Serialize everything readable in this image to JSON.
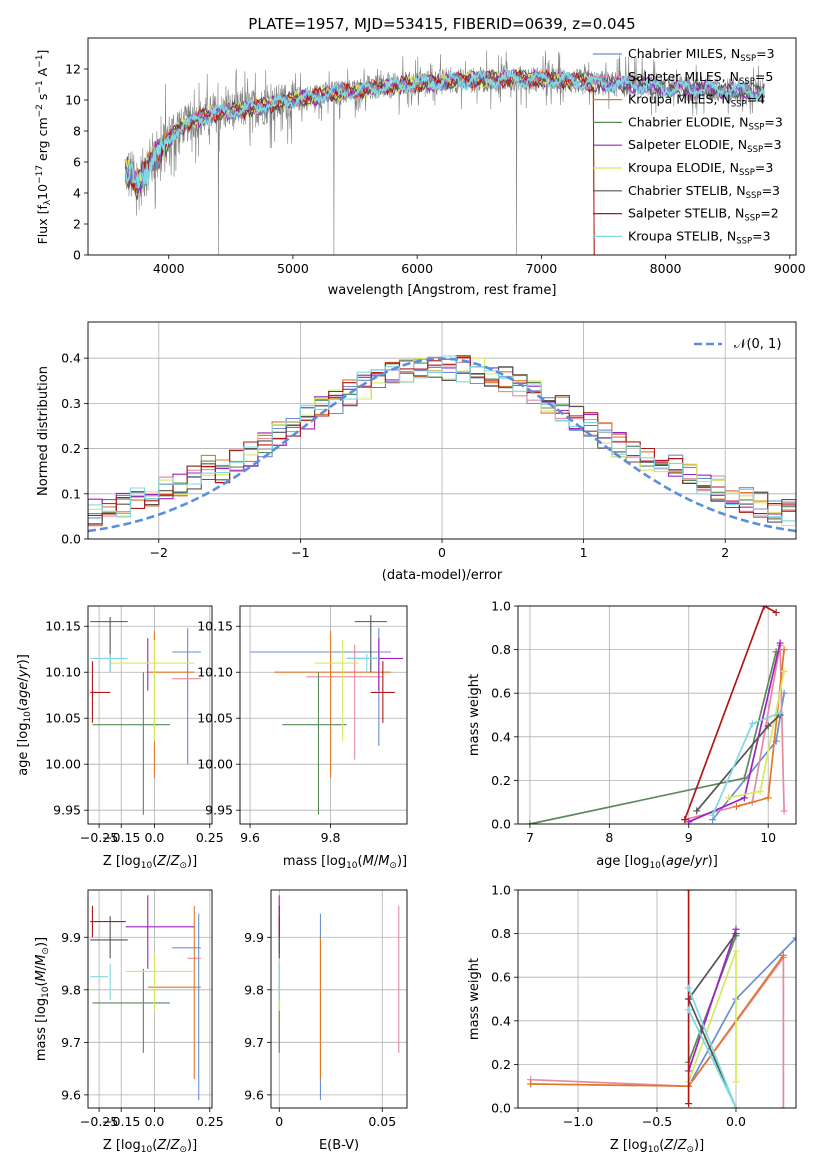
{
  "colors": {
    "c_miles": "#6a8fd6",
    "s_miles": "#e68aa0",
    "k_miles": "#e0782a",
    "c_elodie": "#5a8a5a",
    "s_elodie": "#a020c0",
    "k_elodie": "#d8e860",
    "c_stelib": "#555555",
    "s_stelib": "#b01818",
    "k_stelib": "#80d8e0",
    "observed": "#808080",
    "normal": "#5b8fdc"
  },
  "chart_data": [
    {
      "id": "spectrum",
      "type": "line",
      "title": "PLATE=1957, MJD=53415, FIBERID=0639, z=0.045",
      "xlabel": "wavelength [Angstrom, rest frame]",
      "ylabel": "Flux [f",
      "xlim": [
        3350,
        9050
      ],
      "ylim": [
        0,
        14
      ],
      "xticks": [
        4000,
        5000,
        6000,
        7000,
        8000,
        9000
      ],
      "yticks": [
        0,
        2,
        4,
        6,
        8,
        10,
        12
      ],
      "grid": false,
      "legend_position": "right",
      "legend": [
        {
          "label": "Chabrier MILES, N",
          "n": "3",
          "color_key": "c_miles"
        },
        {
          "label": "Salpeter MILES, N",
          "n": "5",
          "color_key": "s_miles"
        },
        {
          "label": "Kroupa MILES, N",
          "n": "4",
          "color_key": "k_miles"
        },
        {
          "label": "Chabrier ELODIE, N",
          "n": "3",
          "color_key": "c_elodie"
        },
        {
          "label": "Salpeter ELODIE, N",
          "n": "3",
          "color_key": "s_elodie"
        },
        {
          "label": "Kroupa ELODIE, N",
          "n": "3",
          "color_key": "k_elodie"
        },
        {
          "label": "Chabrier STELIB, N",
          "n": "3",
          "color_key": "c_stelib"
        },
        {
          "label": "Salpeter STELIB, N",
          "n": "2",
          "color_key": "s_stelib"
        },
        {
          "label": "Kroupa STELIB, N",
          "n": "3",
          "color_key": "k_stelib"
        }
      ],
      "continuum": [
        [
          3650,
          5.5
        ],
        [
          3750,
          4.5
        ],
        [
          3850,
          6.0
        ],
        [
          3950,
          6.8
        ],
        [
          4050,
          8.0
        ],
        [
          4150,
          8.5
        ],
        [
          4300,
          9.0
        ],
        [
          4500,
          9.3
        ],
        [
          4700,
          9.5
        ],
        [
          5000,
          10.0
        ],
        [
          5300,
          10.4
        ],
        [
          5600,
          10.7
        ],
        [
          5900,
          11.0
        ],
        [
          6200,
          11.2
        ],
        [
          6500,
          11.3
        ],
        [
          6800,
          11.4
        ],
        [
          7100,
          11.3
        ],
        [
          7400,
          11.1
        ],
        [
          7700,
          11.0
        ],
        [
          8000,
          10.8
        ],
        [
          8300,
          10.7
        ],
        [
          8600,
          10.6
        ],
        [
          8800,
          10.5
        ]
      ]
    },
    {
      "id": "residuals",
      "type": "histogram",
      "xlabel": "(data-model)/error",
      "ylabel": "Normed distribution",
      "xlim": [
        -2.5,
        2.5
      ],
      "ylim": [
        0,
        0.48
      ],
      "xticks": [
        -2,
        -1,
        0,
        1,
        2
      ],
      "yticks": [
        0.0,
        0.1,
        0.2,
        0.3,
        0.4
      ],
      "grid": true,
      "bin_width": 0.1,
      "legend_position": "top-right",
      "normal_label": "𝒩(0, 1)",
      "normal": {
        "mean": 0,
        "sigma": 1
      }
    },
    {
      "id": "age_vs_Z",
      "type": "errorbar",
      "xlabel": "Z [log",
      "ylabel": "age  [log",
      "xlim": [
        -0.3,
        0.26
      ],
      "ylim": [
        9.935,
        10.172
      ],
      "xticks": [
        -0.25,
        -0.15,
        0.0,
        0.25
      ],
      "xtick_labels": [
        "−0.25",
        "−0.15",
        "0.0",
        "0.25"
      ],
      "yticks": [
        9.95,
        10.0,
        10.05,
        10.1,
        10.15
      ],
      "grid": true,
      "points": [
        {
          "c": "c_miles",
          "x": 0.15,
          "xl": 0.08,
          "xh": 0.21,
          "y": 10.122,
          "yl": 10.0,
          "yh": 10.148
        },
        {
          "c": "s_miles",
          "x": 0.15,
          "xl": 0.08,
          "xh": 0.21,
          "y": 10.093,
          "yl": 10.093,
          "yh": 10.093
        },
        {
          "c": "k_miles",
          "x": 0.0,
          "xl": -0.03,
          "xh": 0.18,
          "y": 10.1,
          "yl": 9.985,
          "yh": 10.145
        },
        {
          "c": "c_elodie",
          "x": -0.05,
          "xl": -0.28,
          "xh": 0.07,
          "y": 10.043,
          "yl": 9.945,
          "yh": 10.1
        },
        {
          "c": "s_elodie",
          "x": -0.03,
          "xl": -0.03,
          "xh": -0.03,
          "y": 10.115,
          "yl": 10.08,
          "yh": 10.137
        },
        {
          "c": "k_elodie",
          "x": 0.0,
          "xl": -0.2,
          "xh": 0.18,
          "y": 10.11,
          "yl": 10.025,
          "yh": 10.135
        },
        {
          "c": "c_stelib",
          "x": -0.2,
          "xl": -0.29,
          "xh": -0.12,
          "y": 10.155,
          "yl": 10.1,
          "yh": 10.16
        },
        {
          "c": "s_stelib",
          "x": -0.28,
          "xl": -0.29,
          "xh": -0.2,
          "y": 10.078,
          "yl": 10.045,
          "yh": 10.112
        },
        {
          "c": "k_stelib",
          "x": -0.2,
          "xl": -0.29,
          "xh": -0.12,
          "y": 10.115,
          "yl": 10.1,
          "yh": 10.12
        }
      ]
    },
    {
      "id": "age_vs_mass",
      "type": "errorbar",
      "xlabel": "mass [log",
      "ylabel": "",
      "xlim": [
        9.575,
        9.99
      ],
      "ylim": [
        9.935,
        10.172
      ],
      "xticks": [
        9.6,
        9.8
      ],
      "yticks": [
        9.95,
        10.0,
        10.05,
        10.1,
        10.15
      ],
      "grid": true,
      "points": [
        {
          "c": "c_miles",
          "x": 9.92,
          "xl": 9.6,
          "xh": 9.95,
          "y": 10.122,
          "yl": 10.02,
          "yh": 10.148
        },
        {
          "c": "s_miles",
          "x": 9.86,
          "xl": 9.74,
          "xh": 9.93,
          "y": 10.095,
          "yl": 10.005,
          "yh": 10.13
        },
        {
          "c": "k_miles",
          "x": 9.8,
          "xl": 9.66,
          "xh": 9.95,
          "y": 10.1,
          "yl": 9.985,
          "yh": 10.145
        },
        {
          "c": "c_elodie",
          "x": 9.77,
          "xl": 9.68,
          "xh": 9.84,
          "y": 10.043,
          "yl": 9.945,
          "yh": 10.1
        },
        {
          "c": "s_elodie",
          "x": 9.92,
          "xl": 9.84,
          "xh": 9.98,
          "y": 10.115,
          "yl": 10.08,
          "yh": 10.137
        },
        {
          "c": "k_elodie",
          "x": 9.83,
          "xl": 9.76,
          "xh": 9.87,
          "y": 10.11,
          "yl": 10.025,
          "yh": 10.135
        },
        {
          "c": "c_stelib",
          "x": 9.9,
          "xl": 9.86,
          "xh": 9.94,
          "y": 10.155,
          "yl": 10.1,
          "yh": 10.162
        },
        {
          "c": "s_stelib",
          "x": 9.93,
          "xl": 9.9,
          "xh": 9.96,
          "y": 10.078,
          "yl": 10.045,
          "yh": 10.112
        },
        {
          "c": "k_stelib",
          "x": 9.89,
          "xl": 9.84,
          "xh": 9.92,
          "y": 10.115,
          "yl": 10.1,
          "yh": 10.12
        }
      ]
    },
    {
      "id": "weight_vs_age",
      "type": "line",
      "xlabel": "age  [log",
      "ylabel": "mass weight",
      "xlim": [
        6.85,
        10.35
      ],
      "ylim": [
        0,
        1
      ],
      "xticks": [
        7,
        8,
        9,
        10
      ],
      "yticks": [
        0.0,
        0.2,
        0.4,
        0.6,
        0.8,
        1.0
      ],
      "grid": true,
      "series": [
        {
          "c": "c_miles",
          "x": [
            9.3,
            10.1,
            10.2
          ],
          "y": [
            0.02,
            0.38,
            0.6
          ]
        },
        {
          "c": "s_miles",
          "x": [
            8.95,
            9.8,
            10.15,
            10.2
          ],
          "y": [
            0.02,
            0.1,
            0.82,
            0.06
          ]
        },
        {
          "c": "k_miles",
          "x": [
            9.6,
            10.0,
            10.2
          ],
          "y": [
            0.08,
            0.12,
            0.8
          ]
        },
        {
          "c": "c_elodie",
          "x": [
            7.0,
            9.7,
            10.1
          ],
          "y": [
            0.0,
            0.21,
            0.79
          ]
        },
        {
          "c": "s_elodie",
          "x": [
            9.0,
            9.7,
            10.15
          ],
          "y": [
            0.01,
            0.12,
            0.83
          ]
        },
        {
          "c": "k_elodie",
          "x": [
            9.5,
            9.9,
            10.2
          ],
          "y": [
            0.12,
            0.15,
            0.7
          ]
        },
        {
          "c": "c_stelib",
          "x": [
            9.1,
            10.0,
            10.15
          ],
          "y": [
            0.06,
            0.45,
            0.5
          ]
        },
        {
          "c": "s_stelib",
          "x": [
            8.95,
            9.95,
            10.1
          ],
          "y": [
            0.02,
            1.0,
            0.97
          ]
        },
        {
          "c": "k_stelib",
          "x": [
            9.3,
            9.8,
            10.15
          ],
          "y": [
            0.04,
            0.46,
            0.51
          ]
        }
      ]
    },
    {
      "id": "mass_vs_Z",
      "type": "errorbar",
      "xlabel": "Z [log",
      "ylabel": "mass [log",
      "xlim": [
        -0.3,
        0.26
      ],
      "ylim": [
        9.575,
        9.99
      ],
      "xticks": [
        -0.25,
        -0.15,
        0.0,
        0.25
      ],
      "xtick_labels": [
        "−0.25",
        "−0.15",
        "0.0",
        "0.25"
      ],
      "yticks": [
        9.6,
        9.7,
        9.8,
        9.9
      ],
      "grid": true,
      "points": [
        {
          "c": "c_miles",
          "x": 0.2,
          "xl": 0.08,
          "xh": 0.21,
          "y": 9.88,
          "yl": 9.59,
          "yh": 9.945
        },
        {
          "c": "s_miles",
          "x": 0.18,
          "xl": 0.15,
          "xh": 0.21,
          "y": 9.86,
          "yl": 9.86,
          "yh": 9.86
        },
        {
          "c": "k_miles",
          "x": 0.18,
          "xl": -0.03,
          "xh": 0.21,
          "y": 9.805,
          "yl": 9.63,
          "yh": 9.96
        },
        {
          "c": "c_elodie",
          "x": -0.05,
          "xl": -0.28,
          "xh": 0.07,
          "y": 9.775,
          "yl": 9.68,
          "yh": 9.84
        },
        {
          "c": "s_elodie",
          "x": -0.03,
          "xl": -0.13,
          "xh": 0.18,
          "y": 9.92,
          "yl": 9.84,
          "yh": 9.98
        },
        {
          "c": "k_elodie",
          "x": 0.0,
          "xl": -0.13,
          "xh": 0.18,
          "y": 9.835,
          "yl": 9.76,
          "yh": 9.87
        },
        {
          "c": "c_stelib",
          "x": -0.2,
          "xl": -0.29,
          "xh": -0.12,
          "y": 9.895,
          "yl": 9.86,
          "yh": 9.94
        },
        {
          "c": "s_stelib",
          "x": -0.28,
          "xl": -0.29,
          "xh": -0.13,
          "y": 9.93,
          "yl": 9.9,
          "yh": 9.96
        },
        {
          "c": "k_stelib",
          "x": -0.2,
          "xl": -0.29,
          "xh": -0.21,
          "y": 9.825,
          "yl": 9.78,
          "yh": 9.85
        }
      ]
    },
    {
      "id": "mass_vs_ebv",
      "type": "errorbar",
      "xlabel": "E(B-V)",
      "ylabel": "",
      "xlim": [
        -0.004,
        0.062
      ],
      "ylim": [
        9.575,
        9.99
      ],
      "xticks": [
        0.0,
        0.05
      ],
      "yticks": [
        9.6,
        9.7,
        9.8,
        9.9
      ],
      "grid": true,
      "points": [
        {
          "c": "c_miles",
          "x": 0.02,
          "xl": 0.02,
          "xh": 0.02,
          "y": 9.88,
          "yl": 9.59,
          "yh": 9.945
        },
        {
          "c": "s_miles",
          "x": 0.058,
          "xl": 0.058,
          "xh": 0.058,
          "y": 9.86,
          "yl": 9.68,
          "yh": 9.96
        },
        {
          "c": "k_miles",
          "x": 0.02,
          "xl": 0.02,
          "xh": 0.02,
          "y": 9.805,
          "yl": 9.63,
          "yh": 9.9
        },
        {
          "c": "c_elodie",
          "x": 0.0,
          "xl": 0.0,
          "xh": 0.0,
          "y": 9.775,
          "yl": 9.68,
          "yh": 9.84
        },
        {
          "c": "s_elodie",
          "x": 0.0,
          "xl": 0.0,
          "xh": 0.0,
          "y": 9.92,
          "yl": 9.84,
          "yh": 9.98
        },
        {
          "c": "k_elodie",
          "x": 0.0,
          "xl": 0.0,
          "xh": 0.0,
          "y": 9.835,
          "yl": 9.76,
          "yh": 9.87
        },
        {
          "c": "c_stelib",
          "x": 0.0,
          "xl": 0.0,
          "xh": 0.0,
          "y": 9.895,
          "yl": 9.86,
          "yh": 9.94
        },
        {
          "c": "s_stelib",
          "x": 0.0,
          "xl": 0.0,
          "xh": 0.0,
          "y": 9.93,
          "yl": 9.9,
          "yh": 9.96
        },
        {
          "c": "k_stelib",
          "x": 0.0,
          "xl": 0.0,
          "xh": 0.0,
          "y": 9.825,
          "yl": 9.78,
          "yh": 9.85
        }
      ]
    },
    {
      "id": "weight_vs_Z",
      "type": "line",
      "xlabel": "Z [log",
      "ylabel": "mass weight",
      "xlim": [
        -1.38,
        0.38
      ],
      "ylim": [
        0,
        1
      ],
      "xticks": [
        -1.0,
        -0.5,
        0.0
      ],
      "xtick_labels": [
        "−1.0",
        "−0.5",
        "0.0"
      ],
      "yticks": [
        0.0,
        0.2,
        0.4,
        0.6,
        0.8,
        1.0
      ],
      "grid": true,
      "series": [
        {
          "c": "c_miles",
          "x": [
            -0.3,
            0.0,
            0.38
          ],
          "y": [
            0.1,
            0.5,
            0.78
          ]
        },
        {
          "c": "s_miles",
          "x": [
            -1.3,
            -0.3,
            0.3,
            0.3
          ],
          "y": [
            0.13,
            0.1,
            0.69,
            0.0
          ]
        },
        {
          "c": "k_miles",
          "x": [
            -1.3,
            -0.3,
            0.3
          ],
          "y": [
            0.11,
            0.1,
            0.7
          ]
        },
        {
          "c": "c_elodie",
          "x": [
            -0.3,
            0.0
          ],
          "y": [
            0.21,
            0.79
          ]
        },
        {
          "c": "s_elodie",
          "x": [
            -0.3,
            0.0
          ],
          "y": [
            0.17,
            0.82
          ]
        },
        {
          "c": "k_elodie",
          "x": [
            -0.3,
            0.0,
            0.0
          ],
          "y": [
            0.12,
            0.72,
            0.12
          ]
        },
        {
          "c": "c_stelib",
          "x": [
            -0.3,
            0.0,
            -0.3,
            0.0
          ],
          "y": [
            0.5,
            0.0,
            0.5,
            0.8
          ]
        },
        {
          "c": "s_stelib",
          "x": [
            -0.3,
            -0.3
          ],
          "y": [
            0.02,
            1.0
          ]
        },
        {
          "c": "k_stelib",
          "x": [
            -0.3,
            0.0,
            -0.3
          ],
          "y": [
            0.55,
            0.0,
            0.45
          ]
        }
      ]
    }
  ]
}
